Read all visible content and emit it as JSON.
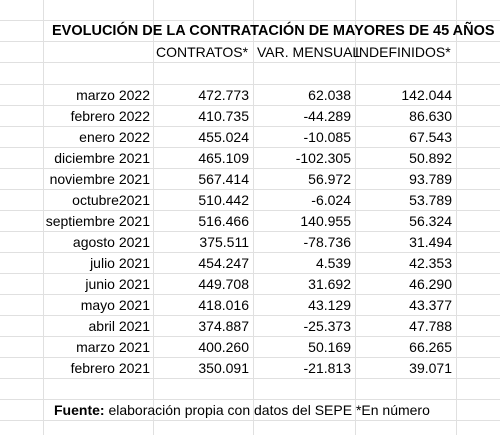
{
  "title": "EVOLUCIÓN DE LA CONTRATACIÓN DE MAYORES DE 45 AÑOS",
  "headers": {
    "contratos": "CONTRATOS*",
    "var_mensual": "VAR. MENSUAL",
    "indefinidos": "INDEFINIDOS*"
  },
  "rows": [
    {
      "mes": "marzo 2022",
      "contratos": "472.773",
      "var": "62.038",
      "indef": "142.044"
    },
    {
      "mes": "febrero 2022",
      "contratos": "410.735",
      "var": "-44.289",
      "indef": "86.630"
    },
    {
      "mes": "enero 2022",
      "contratos": "455.024",
      "var": "-10.085",
      "indef": "67.543"
    },
    {
      "mes": "diciembre 2021",
      "contratos": "465.109",
      "var": "-102.305",
      "indef": "50.892"
    },
    {
      "mes": "noviembre 2021",
      "contratos": "567.414",
      "var": "56.972",
      "indef": "93.789"
    },
    {
      "mes": "octubre2021",
      "contratos": "510.442",
      "var": "-6.024",
      "indef": "53.789"
    },
    {
      "mes": "septiembre 2021",
      "contratos": "516.466",
      "var": "140.955",
      "indef": "56.324"
    },
    {
      "mes": "agosto 2021",
      "contratos": "375.511",
      "var": "-78.736",
      "indef": "31.494"
    },
    {
      "mes": "julio 2021",
      "contratos": "454.247",
      "var": "4.539",
      "indef": "42.353"
    },
    {
      "mes": "junio 2021",
      "contratos": "449.708",
      "var": "31.692",
      "indef": "46.290"
    },
    {
      "mes": "mayo 2021",
      "contratos": "418.016",
      "var": "43.129",
      "indef": "43.377"
    },
    {
      "mes": "abril 2021",
      "contratos": "374.887",
      "var": "-25.373",
      "indef": "47.788"
    },
    {
      "mes": "marzo 2021",
      "contratos": "400.260",
      "var": "50.169",
      "indef": "66.265"
    },
    {
      "mes": "febrero 2021",
      "contratos": "350.091",
      "var": "-21.813",
      "indef": "39.071"
    }
  ],
  "footer": {
    "label": "Fuente:",
    "text": " elaboración propia con datos del SEPE *En número"
  }
}
